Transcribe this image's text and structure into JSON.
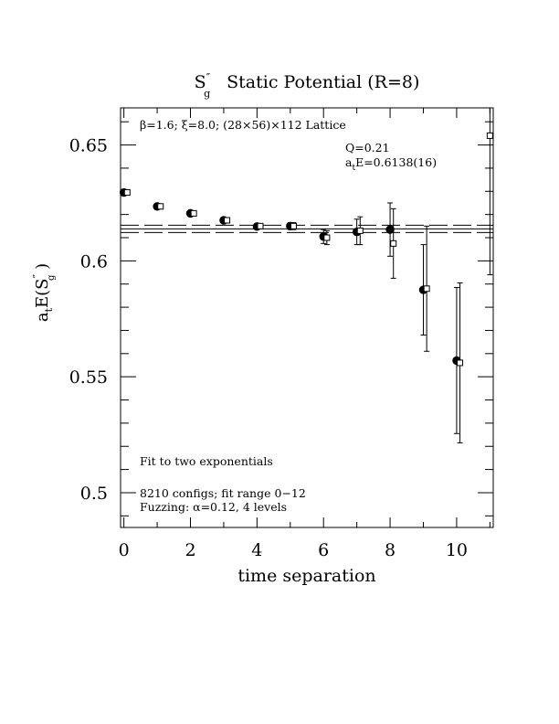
{
  "chart_data": {
    "type": "scatter",
    "title": {
      "main": "S",
      "sup": "″",
      "sub": "g",
      "rest": "Static Potential (R=8)"
    },
    "xlabel": "time separation",
    "ylabel": {
      "pre": "a",
      "pre_sub": "t",
      "mid": "E(S",
      "sup": "″",
      "sub": "g",
      "post": " )"
    },
    "xlim": [
      -0.1,
      11.1
    ],
    "ylim": [
      0.485,
      0.666
    ],
    "x_ticks": [
      0,
      2,
      4,
      6,
      8,
      10
    ],
    "x_tick_labels": [
      "0",
      "2",
      "4",
      "6",
      "8",
      "10"
    ],
    "y_ticks": [
      0.5,
      0.55,
      0.6,
      0.65
    ],
    "y_tick_labels": [
      "0.5",
      "0.55",
      "0.6",
      "0.65"
    ],
    "y_minor_step": 0.01,
    "annotations": {
      "lattice": "β=1.6; ξ=8.0; (28×56)×112 Lattice",
      "q_value": "Q=0.21",
      "energy_pre": "a",
      "energy_sub": "t",
      "energy_rest": "E=0.6138(16)",
      "fit_note": "Fit to two exponentials",
      "configs": "8210 configs; fit range 0−12",
      "fuzzing": "Fuzzing: α=0.12, 4 levels"
    },
    "fit": {
      "center": 0.6138,
      "error": 0.0016
    },
    "series": [
      {
        "marker": "filled-circle",
        "points": [
          {
            "x": 0,
            "y": 0.6295,
            "err": 0.0007
          },
          {
            "x": 1,
            "y": 0.6235,
            "err": 0.0008
          },
          {
            "x": 2,
            "y": 0.6205,
            "err": 0.0009
          },
          {
            "x": 3,
            "y": 0.6175,
            "err": 0.001
          },
          {
            "x": 4,
            "y": 0.6148,
            "err": 0.001
          },
          {
            "x": 5,
            "y": 0.615,
            "err": 0.0015
          },
          {
            "x": 6,
            "y": 0.6105,
            "err": 0.003
          },
          {
            "x": 7,
            "y": 0.6125,
            "err": 0.0055
          },
          {
            "x": 8,
            "y": 0.6135,
            "err": 0.0115
          },
          {
            "x": 9,
            "y": 0.5875,
            "err": 0.0195
          },
          {
            "x": 10,
            "y": 0.557,
            "err": 0.0315
          }
        ]
      },
      {
        "marker": "open-square",
        "points": [
          {
            "x": 0.1,
            "y": 0.6295,
            "err": 0.0007
          },
          {
            "x": 1.1,
            "y": 0.6235,
            "err": 0.0008
          },
          {
            "x": 2.1,
            "y": 0.6205,
            "err": 0.0009
          },
          {
            "x": 3.1,
            "y": 0.6175,
            "err": 0.001
          },
          {
            "x": 4.1,
            "y": 0.615,
            "err": 0.001
          },
          {
            "x": 5.1,
            "y": 0.615,
            "err": 0.0015
          },
          {
            "x": 6.1,
            "y": 0.61,
            "err": 0.003
          },
          {
            "x": 7.1,
            "y": 0.613,
            "err": 0.006
          },
          {
            "x": 8.1,
            "y": 0.6075,
            "err": 0.015
          },
          {
            "x": 9.1,
            "y": 0.588,
            "err": 0.027
          },
          {
            "x": 10.1,
            "y": 0.556,
            "err": 0.0345
          },
          {
            "x": 11,
            "y": 0.654,
            "err": 0.06
          }
        ]
      }
    ]
  }
}
